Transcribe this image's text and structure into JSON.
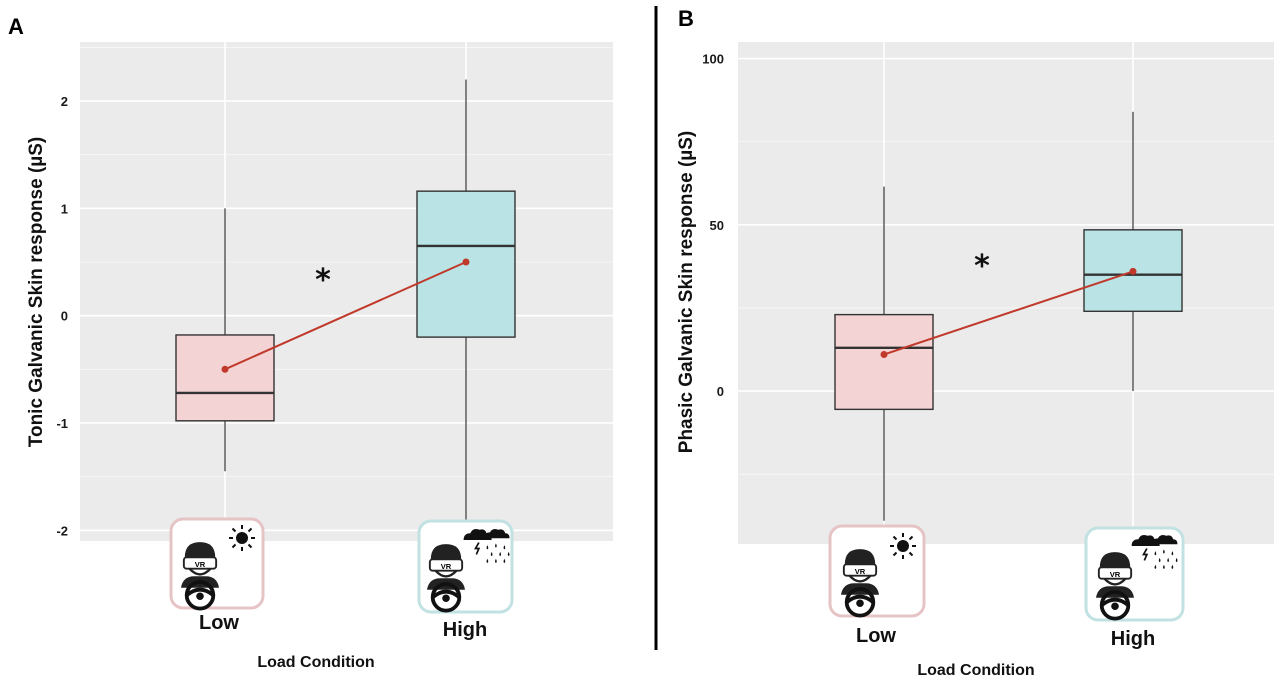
{
  "chart_data": [
    {
      "panel": "A",
      "type": "box",
      "ylabel": "Tonic Galvanic Skin response (µS)",
      "xlabel": "Load Condition",
      "ylim": [
        -2.1,
        2.55
      ],
      "yticks": [
        2,
        1,
        0,
        -1,
        -2
      ],
      "ytick_labels": [
        "2",
        "1",
        "0",
        "-1",
        "-2"
      ],
      "grid": true,
      "categories": [
        "Low",
        "High"
      ],
      "boxes": [
        {
          "category": "Low",
          "whisker_low": -1.45,
          "q1": -0.98,
          "median": -0.72,
          "q3": -0.18,
          "whisker_high": 1.0,
          "color": "#f4d3d5",
          "icon_border": "#e6c4c6"
        },
        {
          "category": "High",
          "whisker_low": -1.9,
          "q1": -0.2,
          "median": 0.65,
          "q3": 1.16,
          "whisker_high": 2.2,
          "color": "#b9e3e4",
          "icon_border": "#c2e1e3"
        }
      ],
      "means": [
        -0.5,
        0.5
      ],
      "mean_color": "#c0392b",
      "significance": "*"
    },
    {
      "panel": "B",
      "type": "box",
      "ylabel": "Phasic Galvanic Skin response (µS)",
      "xlabel": "Load Condition",
      "ylim": [
        -46,
        105
      ],
      "yticks": [
        100,
        50,
        0
      ],
      "ytick_labels": [
        "100",
        "50",
        "0"
      ],
      "grid": true,
      "categories": [
        "Low",
        "High"
      ],
      "boxes": [
        {
          "category": "Low",
          "whisker_low": -39,
          "q1": -5.5,
          "median": 13,
          "q3": 23,
          "whisker_high": 61.5,
          "color": "#f4d3d5",
          "icon_border": "#e6c4c6"
        },
        {
          "category": "High",
          "whisker_low": 0,
          "q1": 24,
          "median": 35,
          "q3": 48.5,
          "whisker_high": 84,
          "color": "#b9e3e4",
          "icon_border": "#c2e1e3"
        }
      ],
      "means": [
        11,
        36
      ],
      "mean_color": "#c0392b",
      "significance": "*"
    }
  ],
  "icons": {
    "low": {
      "name": "driver-vr-sun-icon",
      "vr_label": "VR"
    },
    "high": {
      "name": "driver-vr-storm-icon",
      "vr_label": "VR"
    }
  },
  "colors": {
    "panel_background": "#ebebeb",
    "grid": "#ffffff",
    "divider": "#000000"
  }
}
